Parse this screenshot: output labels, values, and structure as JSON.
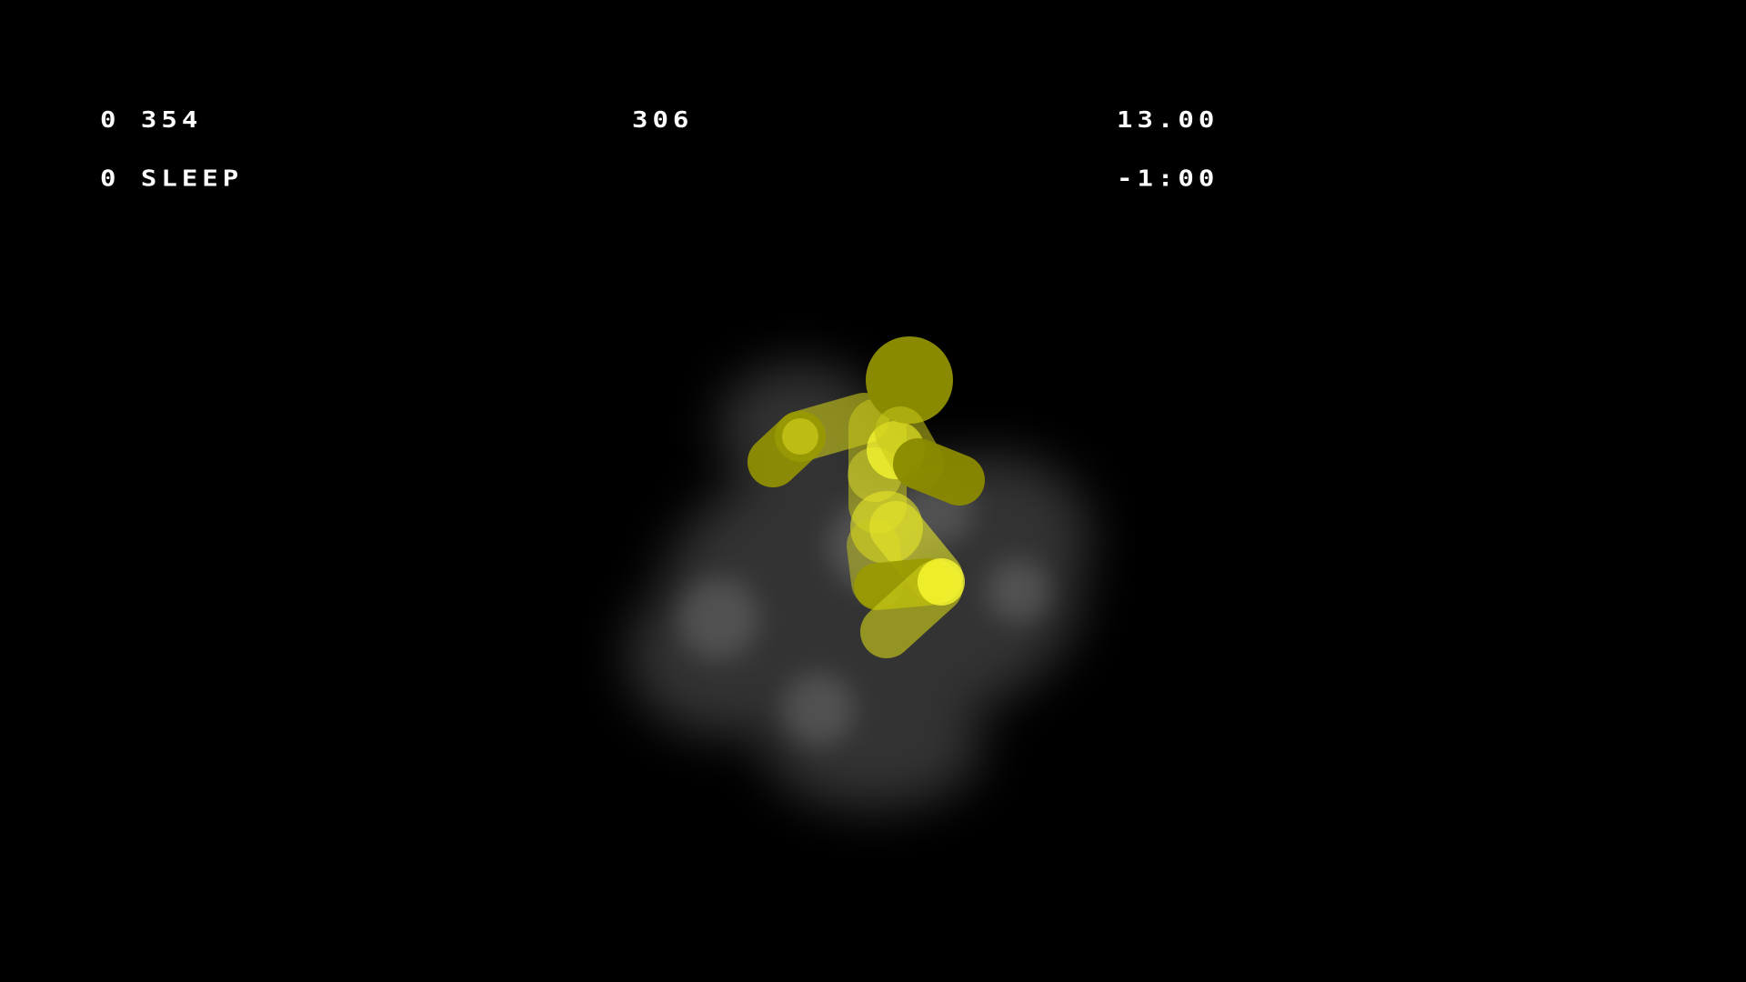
{
  "hud": {
    "left_line1": "0 354",
    "left_line2": "0 SLEEP",
    "center_value": "306",
    "right_line1": "13.00",
    "right_line2": "-1:00"
  },
  "colors": {
    "background": "#000000",
    "hud_text": "#ffffff",
    "figure_dark": "#8a8a00",
    "figure_mid": "#c9c91a",
    "figure_bright": "#ffff33",
    "smoke": "#9a9a9a"
  },
  "scene": {
    "character": "ragdoll-figure",
    "effect": "smoke-cloud"
  }
}
